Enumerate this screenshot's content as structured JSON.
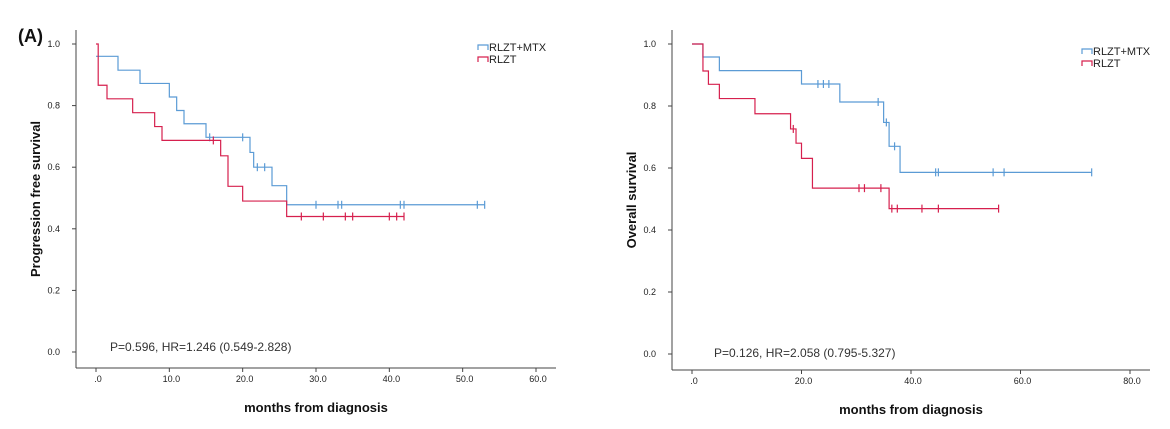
{
  "panel_label": "(A)",
  "colors": {
    "series_a": "#5b9bd5",
    "series_b": "#d6204e",
    "axis": "#444444"
  },
  "chart_data": [
    {
      "type": "line",
      "title": "",
      "xlabel": "months from diagnosis",
      "ylabel": "Progression free survival",
      "xlim": [
        0,
        60
      ],
      "ylim": [
        0,
        1
      ],
      "xticks": [
        0,
        10,
        20,
        30,
        40,
        50,
        60
      ],
      "xtick_labels": [
        ".0",
        "10.0",
        "20.0",
        "30.0",
        "40.0",
        "50.0",
        "60.0"
      ],
      "yticks": [
        0,
        0.2,
        0.4,
        0.6,
        0.8,
        1.0
      ],
      "ytick_labels": [
        "0.0",
        "0.2",
        "0.4",
        "0.6",
        "0.8",
        "1.0"
      ],
      "annotation": "P=0.596, HR=1.246 (0.549-2.828)",
      "legend": [
        "RLZT+MTX",
        "RLZT"
      ],
      "series": [
        {
          "name": "RLZT+MTX",
          "steps": [
            [
              0,
              0.96
            ],
            [
              3,
              0.915
            ],
            [
              6,
              0.872
            ],
            [
              10,
              0.828
            ],
            [
              11,
              0.784
            ],
            [
              12,
              0.741
            ],
            [
              15,
              0.697
            ],
            [
              21,
              0.648
            ],
            [
              21.5,
              0.6
            ],
            [
              24,
              0.54
            ],
            [
              26,
              0.478
            ]
          ],
          "end_x": 53,
          "censored": [
            [
              15.5,
              0.697
            ],
            [
              20,
              0.697
            ],
            [
              22,
              0.6
            ],
            [
              23,
              0.6
            ],
            [
              30,
              0.478
            ],
            [
              33,
              0.478
            ],
            [
              33.5,
              0.478
            ],
            [
              41.5,
              0.478
            ],
            [
              42,
              0.478
            ],
            [
              52,
              0.478
            ],
            [
              53,
              0.478
            ]
          ]
        },
        {
          "name": "RLZT",
          "steps": [
            [
              0,
              1.0
            ],
            [
              0.3,
              0.866
            ],
            [
              1.5,
              0.822
            ],
            [
              5,
              0.777
            ],
            [
              8,
              0.732
            ],
            [
              9,
              0.687
            ],
            [
              17,
              0.637
            ],
            [
              18,
              0.538
            ],
            [
              20,
              0.49
            ],
            [
              26,
              0.44
            ]
          ],
          "end_x": 42,
          "censored": [
            [
              16,
              0.687
            ],
            [
              28,
              0.44
            ],
            [
              31,
              0.44
            ],
            [
              34,
              0.44
            ],
            [
              35,
              0.44
            ],
            [
              40,
              0.44
            ],
            [
              41,
              0.44
            ],
            [
              42,
              0.44
            ]
          ]
        }
      ]
    },
    {
      "type": "line",
      "title": "",
      "xlabel": "months from diagnosis",
      "ylabel": "Overall survival",
      "xlim": [
        0,
        80
      ],
      "ylim": [
        0,
        1
      ],
      "xticks": [
        0,
        20,
        40,
        60,
        80
      ],
      "xtick_labels": [
        ".0",
        "20.0",
        "40.0",
        "60.0",
        "80.0"
      ],
      "yticks": [
        0,
        0.2,
        0.4,
        0.6,
        0.8,
        1.0
      ],
      "ytick_labels": [
        "0.0",
        "0.2",
        "0.4",
        "0.6",
        "0.8",
        "1.0"
      ],
      "annotation": "P=0.126, HR=2.058 (0.795-5.327)",
      "legend": [
        "RLZT+MTX",
        "RLZT"
      ],
      "series": [
        {
          "name": "RLZT+MTX",
          "steps": [
            [
              0,
              1.0
            ],
            [
              2,
              0.958
            ],
            [
              5,
              0.914
            ],
            [
              20,
              0.871
            ],
            [
              27,
              0.813
            ],
            [
              35,
              0.747
            ],
            [
              36,
              0.67
            ],
            [
              38,
              0.586
            ]
          ],
          "end_x": 73,
          "censored": [
            [
              23,
              0.871
            ],
            [
              24,
              0.871
            ],
            [
              25,
              0.871
            ],
            [
              34,
              0.813
            ],
            [
              35.5,
              0.747
            ],
            [
              37,
              0.67
            ],
            [
              44.5,
              0.586
            ],
            [
              45,
              0.586
            ],
            [
              55,
              0.586
            ],
            [
              57,
              0.586
            ],
            [
              73,
              0.586
            ]
          ]
        },
        {
          "name": "RLZT",
          "steps": [
            [
              0,
              1.0
            ],
            [
              2,
              0.913
            ],
            [
              3,
              0.87
            ],
            [
              5,
              0.824
            ],
            [
              11.5,
              0.775
            ],
            [
              18,
              0.726
            ],
            [
              19,
              0.68
            ],
            [
              20,
              0.631
            ],
            [
              22,
              0.535
            ],
            [
              36,
              0.469
            ]
          ],
          "end_x": 56,
          "censored": [
            [
              18.5,
              0.726
            ],
            [
              30.5,
              0.535
            ],
            [
              31.5,
              0.535
            ],
            [
              34.5,
              0.535
            ],
            [
              36.5,
              0.469
            ],
            [
              37.5,
              0.469
            ],
            [
              42,
              0.469
            ],
            [
              45,
              0.469
            ],
            [
              56,
              0.469
            ]
          ]
        }
      ]
    }
  ]
}
